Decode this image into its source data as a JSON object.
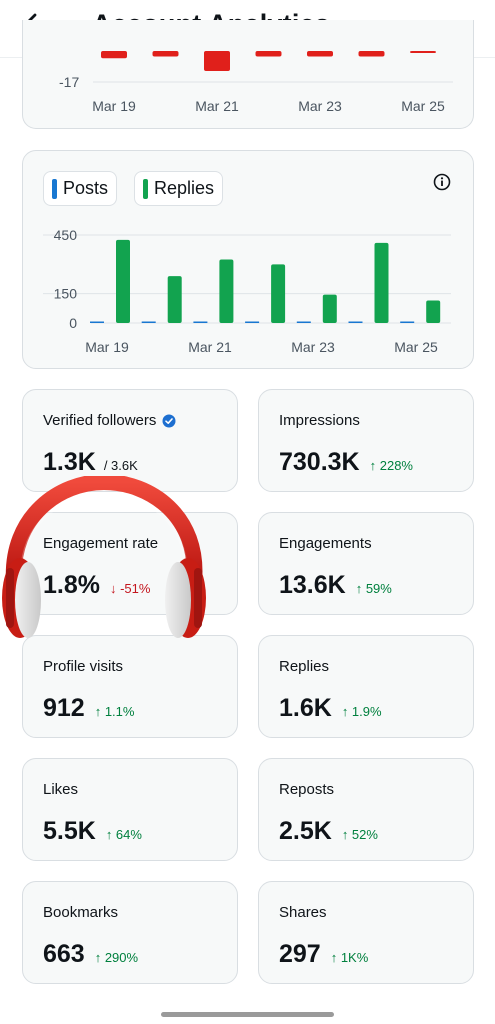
{
  "header": {
    "title": "Account Analytics"
  },
  "top_chart": {
    "y_label": "-17",
    "x_labels": [
      "Mar 19",
      "Mar 21",
      "Mar 23",
      "Mar 25"
    ],
    "bar_color": "#e0201b"
  },
  "engagement_chart": {
    "legend": [
      {
        "label": "Posts",
        "color": "#1877d1"
      },
      {
        "label": "Replies",
        "color": "#12a34f"
      }
    ],
    "y_ticks": [
      "450",
      "150",
      "0"
    ],
    "x_labels": [
      "Mar 19",
      "Mar 21",
      "Mar 23",
      "Mar 25"
    ]
  },
  "chart_data": [
    {
      "type": "bar",
      "categories": [
        "Mar 19",
        "Mar 20",
        "Mar 21",
        "Mar 22",
        "Mar 23",
        "Mar 24",
        "Mar 25"
      ],
      "ylim": [
        -17,
        0
      ],
      "series": [
        {
          "values": [
            -4,
            -3,
            -11,
            -3,
            -3,
            -3,
            -1
          ]
        }
      ],
      "xlabel": "",
      "ylabel": ""
    },
    {
      "type": "bar",
      "categories": [
        "Mar 19",
        "Mar 20",
        "Mar 21",
        "Mar 22",
        "Mar 23",
        "Mar 24",
        "Mar 25"
      ],
      "ylim": [
        0,
        450
      ],
      "series": [
        {
          "name": "Posts",
          "values": [
            3,
            3,
            3,
            2,
            1,
            2,
            1
          ]
        },
        {
          "name": "Replies",
          "values": [
            425,
            240,
            325,
            300,
            145,
            410,
            115
          ]
        }
      ],
      "xlabel": "",
      "ylabel": ""
    }
  ],
  "stats": [
    {
      "label": "Verified followers",
      "value": "1.3K",
      "sub": "/ 3.6K",
      "delta": "",
      "verified": true
    },
    {
      "label": "Impressions",
      "value": "730.3K",
      "delta": "↑ 228%",
      "dir": "up"
    },
    {
      "label": "Engagement rate",
      "value": "1.8%",
      "delta": "↓ -51%",
      "dir": "down"
    },
    {
      "label": "Engagements",
      "value": "13.6K",
      "delta": "↑ 59%",
      "dir": "up"
    },
    {
      "label": "Profile visits",
      "value": "912",
      "delta": "↑ 1.1%",
      "dir": "up"
    },
    {
      "label": "Replies",
      "value": "1.6K",
      "delta": "↑ 1.9%",
      "dir": "up"
    },
    {
      "label": "Likes",
      "value": "5.5K",
      "delta": "↑ 64%",
      "dir": "up"
    },
    {
      "label": "Reposts",
      "value": "2.5K",
      "delta": "↑ 52%",
      "dir": "up"
    },
    {
      "label": "Bookmarks",
      "value": "663",
      "delta": "↑ 290%",
      "dir": "up"
    },
    {
      "label": "Shares",
      "value": "297",
      "delta": "↑ 1K%",
      "dir": "up"
    }
  ],
  "colors": {
    "up": "#00803e",
    "down": "#c4171f",
    "verified": "#1d6fd0"
  }
}
